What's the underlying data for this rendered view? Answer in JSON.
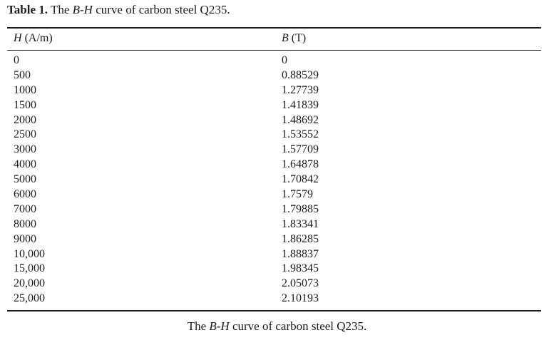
{
  "caption": {
    "label": "Table 1.",
    "pre": " The ",
    "var": "B-H",
    "post": " curve of carbon steel Q235."
  },
  "headers": {
    "h_var": "H",
    "h_unit": " (A/m)",
    "b_var": "B",
    "b_unit": " (T)"
  },
  "rows": [
    {
      "h": "0",
      "b": "0"
    },
    {
      "h": "500",
      "b": "0.88529"
    },
    {
      "h": "1000",
      "b": "1.27739"
    },
    {
      "h": "1500",
      "b": "1.41839"
    },
    {
      "h": "2000",
      "b": "1.48692"
    },
    {
      "h": "2500",
      "b": "1.53552"
    },
    {
      "h": "3000",
      "b": "1.57709"
    },
    {
      "h": "4000",
      "b": "1.64878"
    },
    {
      "h": "5000",
      "b": "1.70842"
    },
    {
      "h": "6000",
      "b": "1.7579"
    },
    {
      "h": "7000",
      "b": "1.79885"
    },
    {
      "h": "8000",
      "b": "1.83341"
    },
    {
      "h": "9000",
      "b": "1.86285"
    },
    {
      "h": "10,000",
      "b": "1.88837"
    },
    {
      "h": "15,000",
      "b": "1.98345"
    },
    {
      "h": "20,000",
      "b": "2.05073"
    },
    {
      "h": "25,000",
      "b": "2.10193"
    }
  ],
  "footer": {
    "pre": "The ",
    "var": "B-H",
    "post": " curve of carbon steel Q235."
  }
}
